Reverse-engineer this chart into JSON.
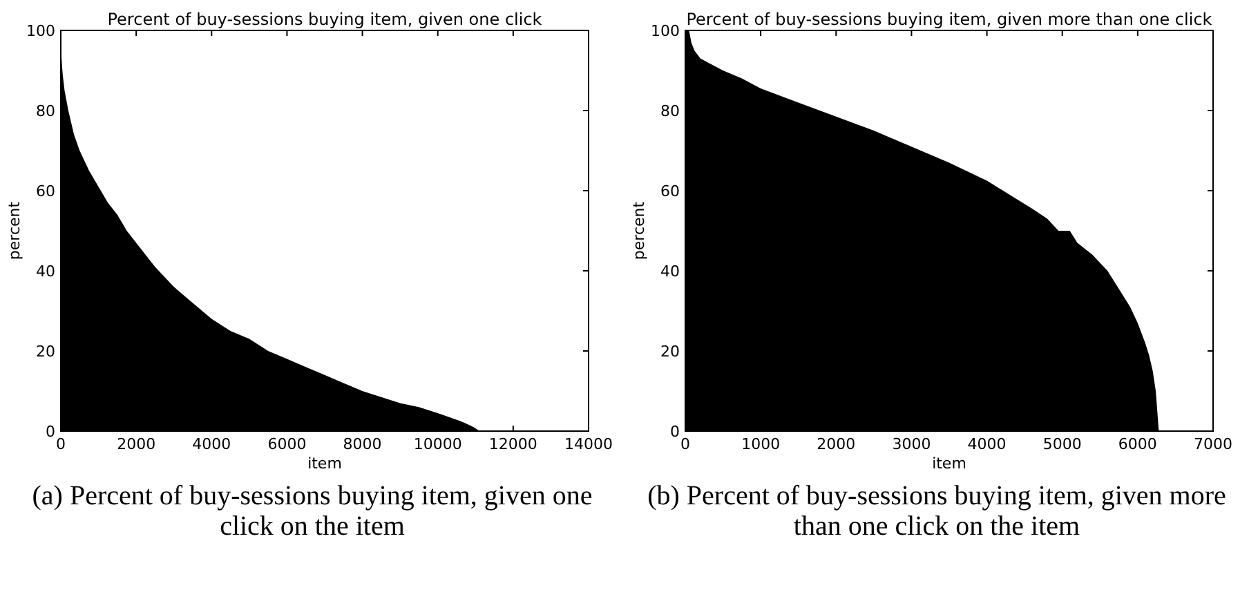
{
  "chart_data": [
    {
      "type": "area",
      "title": "Percent of buy-sessions buying item, given one click",
      "xlabel": "item",
      "ylabel": "percent",
      "annotations": [
        "(a) Percent of buy-sessions buying item, given one click on the item"
      ],
      "xlim": [
        0,
        14000
      ],
      "xticks": [
        0,
        2000,
        4000,
        6000,
        8000,
        10000,
        12000,
        14000
      ],
      "ylim": [
        0,
        100
      ],
      "yticks": [
        0,
        20,
        40,
        60,
        80,
        100
      ],
      "grid": false,
      "series": [
        {
          "color": "#000000",
          "x": [
            0,
            20,
            50,
            100,
            200,
            350,
            500,
            750,
            1000,
            1250,
            1500,
            1750,
            2000,
            2500,
            3000,
            3500,
            4000,
            4500,
            5000,
            5500,
            6000,
            6500,
            7000,
            7500,
            8000,
            8500,
            9000,
            9500,
            10000,
            10300,
            10600,
            10800,
            10950,
            11050,
            11100
          ],
          "values": [
            100,
            93,
            89,
            85,
            80,
            74,
            70,
            65,
            61,
            57,
            54,
            50,
            47,
            41,
            36,
            32,
            28,
            25,
            23,
            20,
            18,
            16,
            14,
            12,
            10,
            8.5,
            7,
            6,
            4.5,
            3.5,
            2.5,
            1.7,
            1,
            0.4,
            0
          ]
        }
      ]
    },
    {
      "type": "area",
      "title": "Percent of buy-sessions buying item, given more than one click",
      "xlabel": "item",
      "ylabel": "percent",
      "annotations": [
        "(b) Percent of buy-sessions buying item, given more than one click on the item"
      ],
      "xlim": [
        0,
        7000
      ],
      "xticks": [
        0,
        1000,
        2000,
        3000,
        4000,
        5000,
        6000,
        7000
      ],
      "ylim": [
        0,
        100
      ],
      "yticks": [
        0,
        20,
        40,
        60,
        80,
        100
      ],
      "grid": false,
      "series": [
        {
          "color": "#000000",
          "x": [
            0,
            50,
            80,
            120,
            200,
            300,
            500,
            750,
            1000,
            1500,
            2000,
            2500,
            3000,
            3500,
            4000,
            4300,
            4600,
            4800,
            4900,
            4950,
            5100,
            5200,
            5400,
            5600,
            5800,
            5900,
            6000,
            6100,
            6150,
            6200,
            6240,
            6260,
            6280
          ],
          "values": [
            100,
            100,
            97,
            95,
            93,
            92,
            90,
            88,
            85.5,
            82,
            78.5,
            75,
            71,
            67,
            62.5,
            59,
            55.5,
            53,
            51,
            50,
            50,
            47,
            44,
            40,
            34,
            31,
            27,
            22,
            19,
            15,
            10,
            5,
            0
          ]
        }
      ]
    }
  ]
}
